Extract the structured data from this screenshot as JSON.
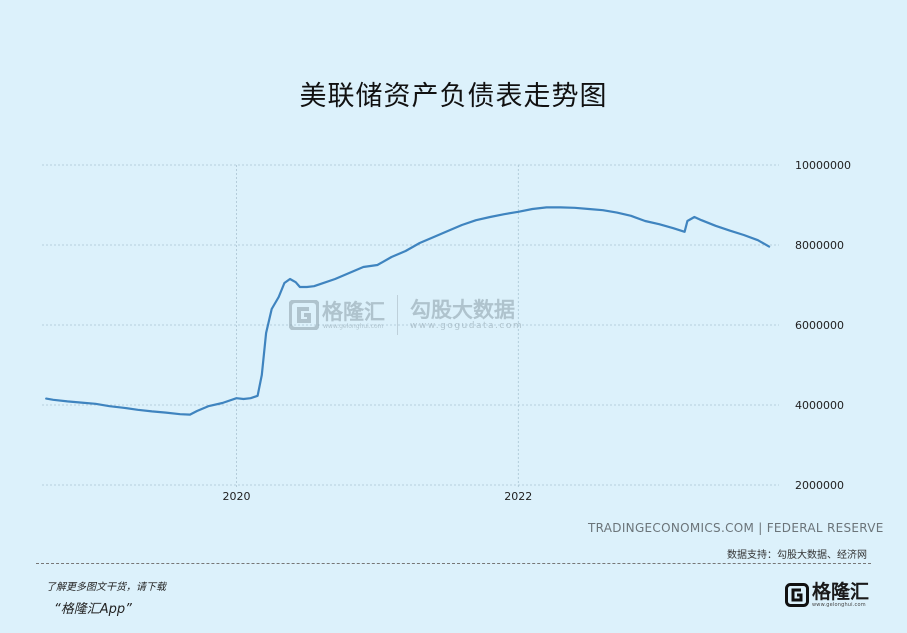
{
  "title": "美联储资产负债表走势图",
  "source_text": "TRADINGECONOMICS.COM  |  FEDERAL RESERVE",
  "support_text": "数据支持：勾股大数据、经济网",
  "promo": {
    "line1": "了解更多图文干货，请下载",
    "line2": "“格隆汇App”"
  },
  "brand": {
    "name": "格隆汇",
    "sub": "www.gelonghui.com"
  },
  "watermark": {
    "name1": "格隆汇",
    "sub1": "www.gelonghui.com",
    "name2": "勾股大数据",
    "sub2": "www.gogudata.com"
  },
  "colors": {
    "background": "#dcf1fb",
    "line": "#3f84bf",
    "grid": "#a9c4d3"
  },
  "chart_data": {
    "type": "line",
    "title": "美联储资产负债表走势图",
    "xlabel": "",
    "ylabel": "",
    "x_ticks": [
      2020,
      2022
    ],
    "y_ticks": [
      2000000,
      4000000,
      6000000,
      8000000,
      10000000
    ],
    "y_tick_labels": [
      "2000000",
      "4000000",
      "6000000",
      "8000000",
      "10000000"
    ],
    "xlim": [
      2018.62,
      2023.85
    ],
    "ylim": [
      1950000,
      10000000
    ],
    "grid": true,
    "legend": "none",
    "series": [
      {
        "x": [
          2018.65,
          2018.7,
          2018.8,
          2018.9,
          2019.0,
          2019.1,
          2019.2,
          2019.3,
          2019.4,
          2019.5,
          2019.6,
          2019.67,
          2019.72,
          2019.8,
          2019.9,
          2020.0,
          2020.05,
          2020.1,
          2020.15,
          2020.18,
          2020.21,
          2020.25,
          2020.3,
          2020.34,
          2020.38,
          2020.42,
          2020.45,
          2020.5,
          2020.55,
          2020.6,
          2020.7,
          2020.8,
          2020.9,
          2021.0,
          2021.1,
          2021.2,
          2021.3,
          2021.4,
          2021.5,
          2021.6,
          2021.7,
          2021.8,
          2021.9,
          2022.0,
          2022.1,
          2022.2,
          2022.3,
          2022.4,
          2022.5,
          2022.6,
          2022.7,
          2022.8,
          2022.9,
          2023.0,
          2023.1,
          2023.18,
          2023.2,
          2023.25,
          2023.3,
          2023.4,
          2023.5,
          2023.6,
          2023.7,
          2023.78
        ],
        "values": [
          4160000,
          4130000,
          4090000,
          4060000,
          4030000,
          3970000,
          3930000,
          3880000,
          3840000,
          3810000,
          3770000,
          3760000,
          3850000,
          3970000,
          4050000,
          4170000,
          4150000,
          4170000,
          4230000,
          4750000,
          5800000,
          6400000,
          6700000,
          7050000,
          7150000,
          7070000,
          6950000,
          6950000,
          6970000,
          7030000,
          7150000,
          7300000,
          7450000,
          7500000,
          7700000,
          7850000,
          8050000,
          8200000,
          8350000,
          8500000,
          8620000,
          8700000,
          8770000,
          8830000,
          8900000,
          8940000,
          8940000,
          8930000,
          8900000,
          8870000,
          8810000,
          8730000,
          8600000,
          8520000,
          8420000,
          8330000,
          8600000,
          8700000,
          8620000,
          8480000,
          8360000,
          8250000,
          8120000,
          7960000
        ]
      }
    ]
  }
}
